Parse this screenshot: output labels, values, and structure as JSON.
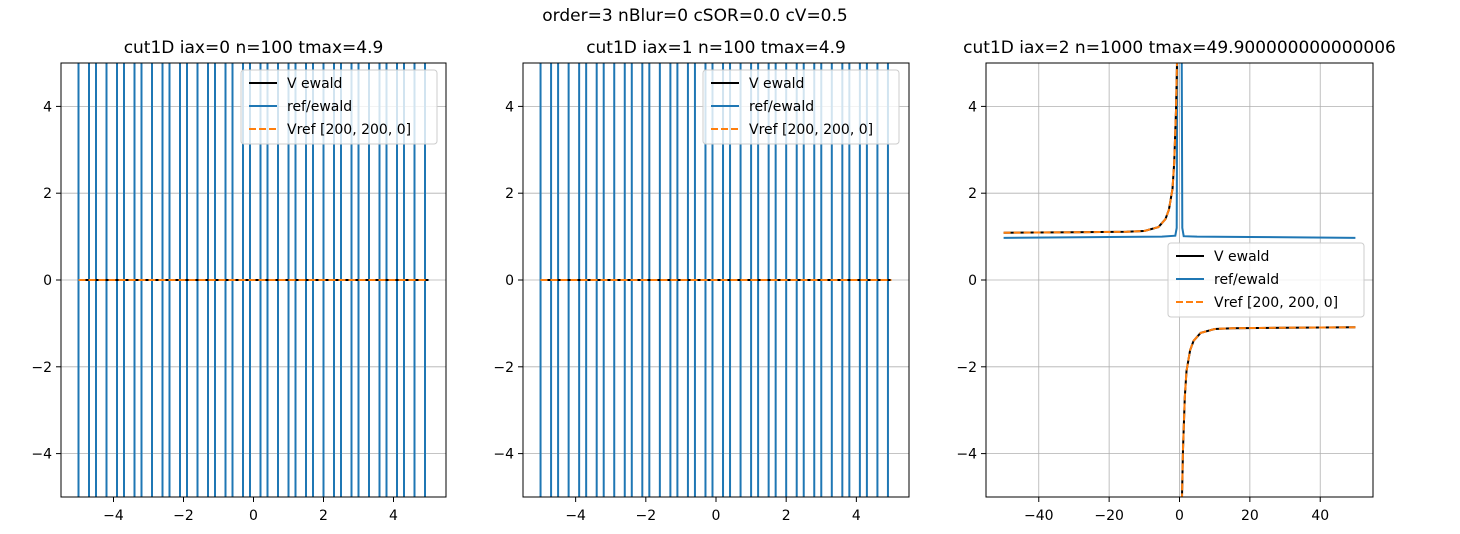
{
  "suptitle": "order=3 nBlur=0 cSOR=0.0 cV=0.5",
  "colors": {
    "black": "#000000",
    "blue": "#1f77b4",
    "orange": "#ff7f0e",
    "grid": "#b0b0b0"
  },
  "legend": {
    "entries": [
      "V ewald",
      "ref/ewald",
      "Vref [200, 200, 0]"
    ]
  },
  "chart_data": [
    {
      "type": "line",
      "title": "cut1D iax=0 n=100 tmax=4.9",
      "xlim": [
        -5.5,
        5.5
      ],
      "ylim": [
        -5,
        5
      ],
      "xticks": [
        -4,
        -2,
        0,
        2,
        4
      ],
      "yticks": [
        -4,
        -2,
        0,
        2,
        4
      ],
      "grid": "y-only",
      "legend_position": "top-right",
      "series": [
        {
          "name": "V ewald",
          "color": "#000000",
          "style": "solid",
          "x": [
            -5,
            5
          ],
          "y": [
            0,
            0
          ]
        },
        {
          "name": "ref/ewald",
          "color": "#1f77b4",
          "style": "vertical-lines-full-range",
          "x": [
            -5.0,
            -4.7,
            -4.5,
            -4.2,
            -3.9,
            -3.7,
            -3.4,
            -3.2,
            -2.9,
            -2.6,
            -2.4,
            -2.1,
            -1.9,
            -1.6,
            -1.3,
            -1.1,
            -0.8,
            -0.6,
            -0.3,
            -0.1,
            0.2,
            0.4,
            0.7,
            1.0,
            1.2,
            1.5,
            1.7,
            2.0,
            2.3,
            2.5,
            2.8,
            3.0,
            3.3,
            3.6,
            3.8,
            4.1,
            4.3,
            4.6,
            4.9
          ]
        },
        {
          "name": "Vref [200, 200, 0]",
          "color": "#ff7f0e",
          "style": "dashed",
          "x": [
            -5,
            5
          ],
          "y": [
            0,
            0
          ]
        }
      ]
    },
    {
      "type": "line",
      "title": "cut1D iax=1 n=100 tmax=4.9",
      "xlim": [
        -5.5,
        5.5
      ],
      "ylim": [
        -5,
        5
      ],
      "xticks": [
        -4,
        -2,
        0,
        2,
        4
      ],
      "yticks": [
        -4,
        -2,
        0,
        2,
        4
      ],
      "grid": "y-only",
      "legend_position": "top-right",
      "series": [
        {
          "name": "V ewald",
          "color": "#000000",
          "style": "solid",
          "x": [
            -5,
            5
          ],
          "y": [
            0,
            0
          ]
        },
        {
          "name": "ref/ewald",
          "color": "#1f77b4",
          "style": "vertical-lines-full-range",
          "x": [
            -5.0,
            -4.7,
            -4.5,
            -4.2,
            -3.9,
            -3.7,
            -3.4,
            -3.2,
            -2.9,
            -2.6,
            -2.4,
            -2.1,
            -1.9,
            -1.6,
            -1.3,
            -1.1,
            -0.8,
            -0.6,
            -0.3,
            -0.1,
            0.2,
            0.4,
            0.7,
            1.0,
            1.2,
            1.5,
            1.7,
            2.0,
            2.3,
            2.5,
            2.8,
            3.0,
            3.3,
            3.6,
            3.8,
            4.1,
            4.3,
            4.6,
            4.9
          ]
        },
        {
          "name": "Vref [200, 200, 0]",
          "color": "#ff7f0e",
          "style": "dashed",
          "x": [
            -5,
            5
          ],
          "y": [
            0,
            0
          ]
        }
      ]
    },
    {
      "type": "line",
      "title": "cut1D iax=2 n=1000 tmax=49.900000000000006",
      "xlim": [
        -55,
        55
      ],
      "ylim": [
        -5,
        5
      ],
      "xticks": [
        -40,
        -20,
        0,
        20,
        40
      ],
      "yticks": [
        -4,
        -2,
        0,
        2,
        4
      ],
      "grid": "both",
      "legend_position": "center-right",
      "series": [
        {
          "name": "V ewald",
          "color": "#000000",
          "style": "solid",
          "x": [
            -50,
            -30,
            -15,
            -10,
            -6,
            -4,
            -3,
            -2,
            -1.5,
            -1,
            -0.7,
            -0.5,
            0.5,
            0.7,
            1,
            1.5,
            2,
            3,
            4,
            6,
            10,
            15,
            30,
            50
          ],
          "y": [
            1.09,
            1.1,
            1.11,
            1.13,
            1.22,
            1.4,
            1.62,
            2.1,
            2.7,
            3.9,
            5.0,
            6.0,
            -6.0,
            -5.0,
            -3.9,
            -2.7,
            -2.1,
            -1.62,
            -1.4,
            -1.22,
            -1.13,
            -1.11,
            -1.1,
            -1.09
          ]
        },
        {
          "name": "ref/ewald",
          "color": "#1f77b4",
          "style": "solid",
          "x": [
            -50,
            -20,
            -5,
            -1.2,
            -0.8,
            -0.6,
            0.6,
            0.8,
            1.2,
            5,
            20,
            50
          ],
          "y": [
            0.97,
            0.99,
            1.0,
            1.02,
            1.2,
            6.0,
            6.0,
            1.2,
            1.01,
            1.0,
            0.99,
            0.97
          ]
        },
        {
          "name": "Vref [200, 200, 0]",
          "color": "#ff7f0e",
          "style": "dashed",
          "x": [
            -50,
            -30,
            -15,
            -10,
            -6,
            -4,
            -3,
            -2,
            -1.5,
            -1,
            -0.7,
            -0.5,
            0.5,
            0.7,
            1,
            1.5,
            2,
            3,
            4,
            6,
            10,
            15,
            30,
            50
          ],
          "y": [
            1.09,
            1.1,
            1.11,
            1.13,
            1.22,
            1.4,
            1.62,
            2.1,
            2.7,
            3.9,
            5.0,
            6.0,
            -6.0,
            -5.0,
            -3.9,
            -2.7,
            -2.1,
            -1.62,
            -1.4,
            -1.22,
            -1.13,
            -1.11,
            -1.1,
            -1.09
          ]
        }
      ]
    }
  ]
}
